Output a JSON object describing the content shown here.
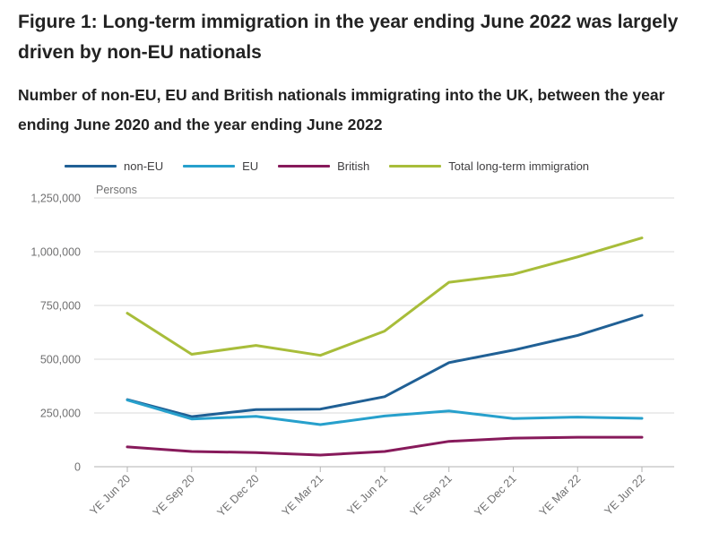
{
  "title": "Figure 1: Long-term immigration in the year ending June 2022 was largely driven by non-EU nationals",
  "subtitle": "Number of non-EU, EU and British nationals immigrating into the UK, between the year ending June 2020 and the year ending June 2022",
  "chart_data": {
    "type": "line",
    "title": "Figure 1: Long-term immigration in the year ending June 2022 was largely driven by non-EU nationals",
    "subtitle": "Number of non-EU, EU and British nationals immigrating into the UK, between the year ending June 2020 and the year ending June 2022",
    "ylabel": "Persons",
    "xlabel": "",
    "categories": [
      "YE Jun 20",
      "YE Sep 20",
      "YE Dec 20",
      "YE Mar 21",
      "YE Jun 21",
      "YE Sep 21",
      "YE Dec 21",
      "YE Mar 22",
      "YE Jun 22"
    ],
    "ylim": [
      0,
      1250000
    ],
    "yticks": [
      0,
      250000,
      500000,
      750000,
      1000000,
      1250000
    ],
    "ytick_labels": [
      "0",
      "250,000",
      "500,000",
      "750,000",
      "1,000,000",
      "1,250,000"
    ],
    "grid": true,
    "legend_position": "top",
    "series": [
      {
        "name": "non-EU",
        "color": "#206095",
        "values": [
          312000,
          233000,
          266000,
          268000,
          326000,
          484000,
          542000,
          611000,
          704000
        ]
      },
      {
        "name": "EU",
        "color": "#27a0cc",
        "values": [
          310000,
          222000,
          234000,
          196000,
          236000,
          259000,
          224000,
          231000,
          225000
        ]
      },
      {
        "name": "British",
        "color": "#871a5b",
        "values": [
          92000,
          71000,
          66000,
          54000,
          71000,
          118000,
          133000,
          137000,
          137000
        ]
      },
      {
        "name": "Total long-term immigration",
        "color": "#a8bd3a",
        "values": [
          714000,
          523000,
          564000,
          518000,
          631000,
          858000,
          895000,
          976000,
          1064000
        ]
      }
    ]
  }
}
